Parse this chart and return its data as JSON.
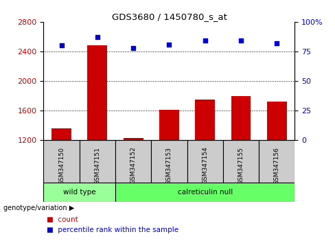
{
  "title": "GDS3680 / 1450780_s_at",
  "samples": [
    "GSM347150",
    "GSM347151",
    "GSM347152",
    "GSM347153",
    "GSM347154",
    "GSM347155",
    "GSM347156"
  ],
  "bar_values": [
    1360,
    2480,
    1230,
    1610,
    1750,
    1800,
    1720
  ],
  "dot_values": [
    80,
    87,
    78,
    81,
    84,
    84,
    82
  ],
  "ylim_left": [
    1200,
    2800
  ],
  "ylim_right": [
    0,
    100
  ],
  "yticks_left": [
    1200,
    1600,
    2000,
    2400,
    2800
  ],
  "yticks_right": [
    0,
    25,
    50,
    75,
    100
  ],
  "grid_values": [
    1600,
    2000,
    2400
  ],
  "bar_color": "#cc0000",
  "dot_color": "#0000cc",
  "groups": [
    {
      "label": "wild type",
      "sample_indices": [
        0,
        1
      ],
      "color": "#99ff99"
    },
    {
      "label": "calreticulin null",
      "sample_indices": [
        2,
        3,
        4,
        5,
        6
      ],
      "color": "#66ff66"
    }
  ],
  "group_row_label": "genotype/variation",
  "legend_count_label": "count",
  "legend_pct_label": "percentile rank within the sample",
  "bg_color": "#ffffff",
  "bar_width": 0.55,
  "tick_label_color_left": "#cc0000",
  "tick_label_color_right": "#0000cc",
  "sample_box_color": "#cccccc",
  "figsize": [
    4.88,
    3.54
  ],
  "dpi": 100
}
